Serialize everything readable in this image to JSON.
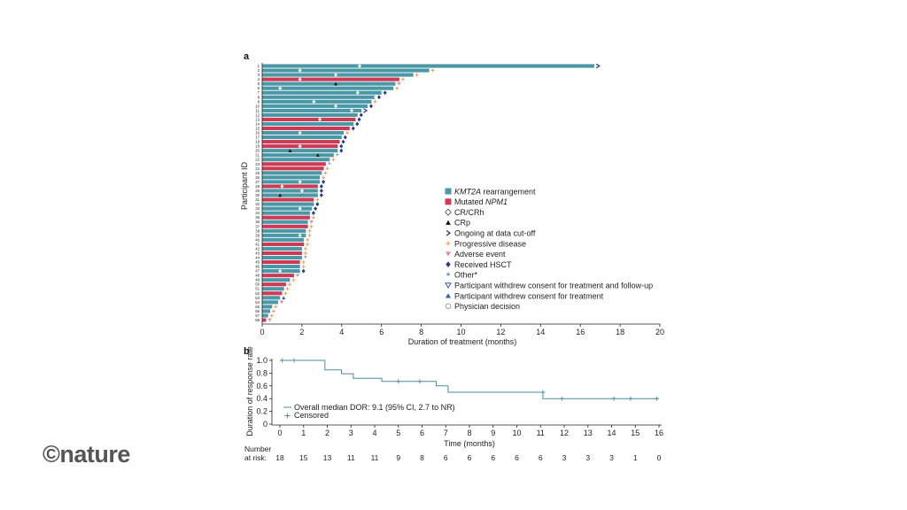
{
  "logo": "©nature",
  "chart_data": [
    {
      "panel": "a",
      "type": "bar",
      "orientation": "horizontal",
      "xlabel": "Duration of treatment (months)",
      "ylabel": "Participant ID",
      "xlim": [
        0,
        20
      ],
      "xticks": [
        0,
        2,
        4,
        6,
        8,
        10,
        12,
        14,
        16,
        18,
        20
      ],
      "grid": false,
      "legend_position": "right",
      "colors": {
        "KMT2A": "#4a97a5",
        "NPM1": "#cc3a55",
        "HSCT": "#1f3b8a",
        "progressive": "#e8a05a",
        "adverse": "#e58aa0",
        "other": "#2f5fa8",
        "ongoing": "#1f3b8a",
        "crp": "#111111"
      },
      "legend": [
        {
          "label_italic": "KMT2A",
          "label": " rearrangement",
          "symbol": "square-teal"
        },
        {
          "label": "Mutated ",
          "label_italic": "NPM1",
          "symbol": "square-red"
        },
        {
          "label": "CR/CRh",
          "symbol": "open-diamond"
        },
        {
          "label": "CRp",
          "symbol": "triangle-black"
        },
        {
          "label": "Ongoing at data cut-off",
          "symbol": "arrow"
        },
        {
          "label": "Progressive disease",
          "symbol": "plus-orange"
        },
        {
          "label": "Adverse event",
          "symbol": "down-triangle-pink"
        },
        {
          "label": "Received HSCT",
          "symbol": "diamond-navy"
        },
        {
          "label": "Other*",
          "symbol": "star-blue"
        },
        {
          "label": "Participant withdrew consent for treatment and follow-up",
          "symbol": "down-triangle-open-blue"
        },
        {
          "label": "Participant withdrew consent for treatment",
          "symbol": "triangle-blue"
        },
        {
          "label": "Physician decision",
          "symbol": "circle-open"
        }
      ],
      "participants": [
        {
          "id": "1",
          "type": "KMT2A",
          "duration": 16.7,
          "end": "ongoing",
          "response": "cr",
          "response_at": 4.9
        },
        {
          "id": "2",
          "type": "KMT2A",
          "duration": 8.4,
          "end": "progressive",
          "response": "cr",
          "response_at": 1.9
        },
        {
          "id": "3",
          "type": "KMT2A",
          "duration": 7.6,
          "end": "progressive",
          "response": "cr",
          "response_at": 3.7
        },
        {
          "id": "4",
          "type": "NPM1",
          "duration": 6.9,
          "end": "progressive",
          "response": "cr",
          "response_at": 1.9
        },
        {
          "id": "5",
          "type": "KMT2A",
          "duration": 6.7,
          "end": "adverse",
          "response": "crp",
          "response_at": 3.7
        },
        {
          "id": "6",
          "type": "KMT2A",
          "duration": 6.6,
          "end": "progressive",
          "response": "cr",
          "response_at": 0.9
        },
        {
          "id": "7",
          "type": "KMT2A",
          "duration": 6.0,
          "end": "hsct",
          "response": "cr",
          "response_at": 4.8
        },
        {
          "id": "8",
          "type": "KMT2A",
          "duration": 5.7,
          "end": "hsct",
          "response": "cr",
          "response_at": 5.7
        },
        {
          "id": "9",
          "type": "KMT2A",
          "duration": 5.5,
          "end": "progressive",
          "response": "cr",
          "response_at": 2.6
        },
        {
          "id": "10",
          "type": "KMT2A",
          "duration": 5.3,
          "end": "hsct",
          "response": "cr",
          "response_at": 3.7
        },
        {
          "id": "11",
          "type": "KMT2A",
          "duration": 5.0,
          "end": "ongoing",
          "response": "cr",
          "response_at": 4.5
        },
        {
          "id": "12",
          "type": "KMT2A",
          "duration": 4.8,
          "end": "hsct",
          "response": "",
          "response_at": null
        },
        {
          "id": "13",
          "type": "NPM1",
          "duration": 4.7,
          "end": "hsct",
          "response": "cr",
          "response_at": 2.9
        },
        {
          "id": "14",
          "type": "KMT2A",
          "duration": 4.6,
          "end": "hsct",
          "response": "",
          "response_at": null
        },
        {
          "id": "15",
          "type": "NPM1",
          "duration": 4.4,
          "end": "hsct",
          "response": "",
          "response_at": null
        },
        {
          "id": "16",
          "type": "KMT2A",
          "duration": 4.1,
          "end": "progressive",
          "response": "cr",
          "response_at": 1.9
        },
        {
          "id": "17",
          "type": "KMT2A",
          "duration": 4.0,
          "end": "hsct",
          "response": "",
          "response_at": null
        },
        {
          "id": "18",
          "type": "NPM1",
          "duration": 3.9,
          "end": "hsct",
          "response": "",
          "response_at": null
        },
        {
          "id": "19",
          "type": "NPM1",
          "duration": 3.8,
          "end": "hsct",
          "response": "cr",
          "response_at": 1.9
        },
        {
          "id": "20",
          "type": "KMT2A",
          "duration": 3.8,
          "end": "hsct",
          "response": "crp",
          "response_at": 1.4
        },
        {
          "id": "21",
          "type": "KMT2A",
          "duration": 3.6,
          "end": "other",
          "response": "crp",
          "response_at": 2.8
        },
        {
          "id": "22",
          "type": "KMT2A",
          "duration": 3.4,
          "end": "progressive",
          "response": "",
          "response_at": null
        },
        {
          "id": "23",
          "type": "NPM1",
          "duration": 3.2,
          "end": "other",
          "response": "",
          "response_at": null
        },
        {
          "id": "24",
          "type": "NPM1",
          "duration": 3.1,
          "end": "progressive",
          "response": "",
          "response_at": null
        },
        {
          "id": "25",
          "type": "KMT2A",
          "duration": 3.0,
          "end": "progressive",
          "response": "",
          "response_at": null
        },
        {
          "id": "26",
          "type": "KMT2A",
          "duration": 2.9,
          "end": "progressive",
          "response": "",
          "response_at": null
        },
        {
          "id": "27",
          "type": "KMT2A",
          "duration": 2.9,
          "end": "hsct",
          "response": "cr",
          "response_at": 1.9
        },
        {
          "id": "28",
          "type": "NPM1",
          "duration": 2.8,
          "end": "hsct",
          "response": "cr",
          "response_at": 1.0
        },
        {
          "id": "29",
          "type": "KMT2A",
          "duration": 2.8,
          "end": "hsct",
          "response": "cr",
          "response_at": 2.0
        },
        {
          "id": "30",
          "type": "KMT2A",
          "duration": 2.8,
          "end": "hsct",
          "response": "crp",
          "response_at": 0.9
        },
        {
          "id": "31",
          "type": "NPM1",
          "duration": 2.6,
          "end": "progressive",
          "response": "",
          "response_at": null
        },
        {
          "id": "32",
          "type": "KMT2A",
          "duration": 2.6,
          "end": "hsct",
          "response": "",
          "response_at": null
        },
        {
          "id": "33",
          "type": "KMT2A",
          "duration": 2.5,
          "end": "hsct",
          "response": "cr",
          "response_at": 1.9
        },
        {
          "id": "34",
          "type": "KMT2A",
          "duration": 2.4,
          "end": "hsct",
          "response": "",
          "response_at": null
        },
        {
          "id": "35",
          "type": "NPM1",
          "duration": 2.4,
          "end": "progressive",
          "response": "",
          "response_at": null
        },
        {
          "id": "36",
          "type": "KMT2A",
          "duration": 2.3,
          "end": "adverse",
          "response": "",
          "response_at": null
        },
        {
          "id": "37",
          "type": "NPM1",
          "duration": 2.3,
          "end": "progressive",
          "response": "",
          "response_at": null
        },
        {
          "id": "38",
          "type": "KMT2A",
          "duration": 2.2,
          "end": "progressive",
          "response": "",
          "response_at": null
        },
        {
          "id": "39",
          "type": "KMT2A",
          "duration": 2.2,
          "end": "progressive",
          "response": "cr",
          "response_at": 1.9
        },
        {
          "id": "40",
          "type": "KMT2A",
          "duration": 2.1,
          "end": "progressive",
          "response": "",
          "response_at": null
        },
        {
          "id": "41",
          "type": "NPM1",
          "duration": 2.1,
          "end": "progressive",
          "response": "",
          "response_at": null
        },
        {
          "id": "42",
          "type": "KMT2A",
          "duration": 2.0,
          "end": "progressive",
          "response": "",
          "response_at": null
        },
        {
          "id": "43",
          "type": "NPM1",
          "duration": 2.0,
          "end": "progressive",
          "response": "",
          "response_at": null
        },
        {
          "id": "44",
          "type": "KMT2A",
          "duration": 2.0,
          "end": "other",
          "response": "",
          "response_at": null
        },
        {
          "id": "45",
          "type": "NPM1",
          "duration": 1.9,
          "end": "progressive",
          "response": "",
          "response_at": null
        },
        {
          "id": "46",
          "type": "KMT2A",
          "duration": 1.9,
          "end": "progressive",
          "response": "",
          "response_at": null
        },
        {
          "id": "47",
          "type": "KMT2A",
          "duration": 1.9,
          "end": "hsct",
          "response": "cr",
          "response_at": 0.9
        },
        {
          "id": "48",
          "type": "NPM1",
          "duration": 1.6,
          "end": "adverse",
          "response": "",
          "response_at": null
        },
        {
          "id": "49",
          "type": "KMT2A",
          "duration": 1.4,
          "end": "progressive",
          "response": "",
          "response_at": null
        },
        {
          "id": "50",
          "type": "NPM1",
          "duration": 1.2,
          "end": "progressive",
          "response": "",
          "response_at": null
        },
        {
          "id": "51",
          "type": "KMT2A",
          "duration": 1.1,
          "end": "progressive",
          "response": "",
          "response_at": null
        },
        {
          "id": "52",
          "type": "NPM1",
          "duration": 1.0,
          "end": "progressive",
          "response": "",
          "response_at": null
        },
        {
          "id": "53",
          "type": "KMT2A",
          "duration": 0.9,
          "end": "consent",
          "response": "",
          "response_at": null
        },
        {
          "id": "54",
          "type": "KMT2A",
          "duration": 0.8,
          "end": "adverse",
          "response": "",
          "response_at": null
        },
        {
          "id": "55",
          "type": "KMT2A",
          "duration": 0.5,
          "end": "progressive",
          "response": "",
          "response_at": null
        },
        {
          "id": "56",
          "type": "KMT2A",
          "duration": 0.4,
          "end": "progressive",
          "response": "",
          "response_at": null
        },
        {
          "id": "57",
          "type": "KMT2A",
          "duration": 0.3,
          "end": "progressive",
          "response": "",
          "response_at": null
        },
        {
          "id": "58",
          "type": "NPM1",
          "duration": 0.2,
          "end": "adverse",
          "response": "",
          "response_at": null
        }
      ]
    },
    {
      "panel": "b",
      "type": "line",
      "subtype": "kaplan-meier",
      "xlabel": "Time (months)",
      "ylabel": "Duration of response rate",
      "xlim": [
        0,
        16
      ],
      "ylim": [
        0,
        1.0
      ],
      "xticks": [
        0,
        1,
        2,
        3,
        4,
        5,
        6,
        7,
        8,
        9,
        10,
        11,
        12,
        13,
        14,
        15,
        16
      ],
      "yticks": [
        "0",
        "0.2",
        "0.4",
        "0.6",
        "0.8",
        "1.0"
      ],
      "grid": false,
      "legend_position": "bottom-left",
      "series_color": "#4a8f9e",
      "legend": [
        {
          "label": "Overall median DOR: 9.1 (95% CI,  2.7 to NR)",
          "symbol": "line"
        },
        {
          "label": "Censored",
          "symbol": "plus"
        }
      ],
      "steps": [
        [
          0,
          1.0
        ],
        [
          1.9,
          1.0
        ],
        [
          1.9,
          0.85
        ],
        [
          2.6,
          0.85
        ],
        [
          2.6,
          0.79
        ],
        [
          3.1,
          0.79
        ],
        [
          3.1,
          0.72
        ],
        [
          4.3,
          0.72
        ],
        [
          4.3,
          0.67
        ],
        [
          6.6,
          0.67
        ],
        [
          6.6,
          0.6
        ],
        [
          7.1,
          0.6
        ],
        [
          7.1,
          0.5
        ],
        [
          11.1,
          0.5
        ],
        [
          11.1,
          0.4
        ],
        [
          16,
          0.4
        ]
      ],
      "censored": [
        [
          0.1,
          1.0
        ],
        [
          0.6,
          1.0
        ],
        [
          5.0,
          0.67
        ],
        [
          5.9,
          0.67
        ],
        [
          11.1,
          0.5
        ],
        [
          11.9,
          0.4
        ],
        [
          14.1,
          0.4
        ],
        [
          14.8,
          0.4
        ],
        [
          15.9,
          0.4
        ]
      ],
      "risk_table": {
        "title_line1": "Number",
        "title_line2": "at risk:",
        "times": [
          0,
          1,
          2,
          3,
          4,
          5,
          6,
          7,
          8,
          9,
          10,
          11,
          12,
          13,
          14,
          15,
          16
        ],
        "values": [
          "18",
          "15",
          "13",
          "11",
          "11",
          "9",
          "8",
          "6",
          "6",
          "6",
          "6",
          "6",
          "3",
          "3",
          "3",
          "1",
          "0"
        ]
      }
    }
  ]
}
